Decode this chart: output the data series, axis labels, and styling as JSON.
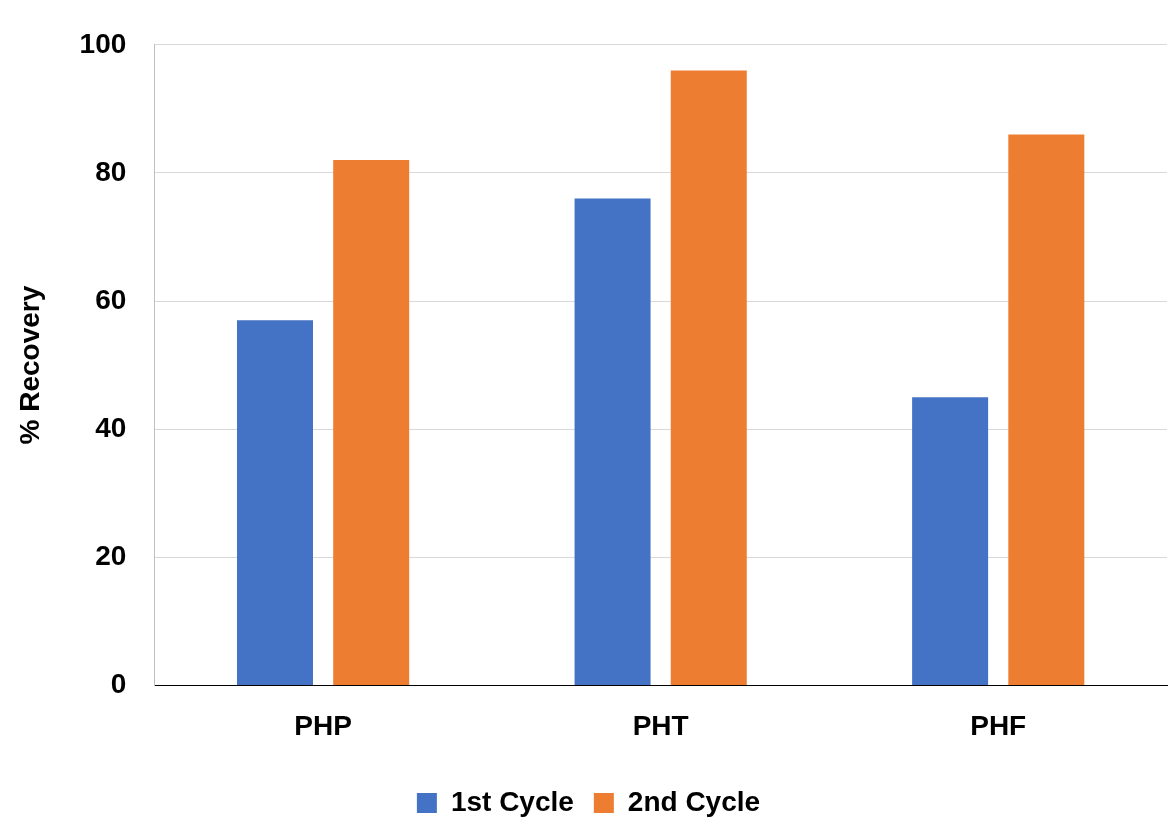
{
  "chart_data": {
    "type": "bar",
    "ylabel": "% Recovery",
    "categories": [
      "PHP",
      "PHT",
      "PHF"
    ],
    "series": [
      {
        "name": "1st Cycle",
        "color": "#4472c4",
        "values": [
          57,
          76,
          45
        ]
      },
      {
        "name": "2nd Cycle",
        "color": "#ed7d31",
        "values": [
          82,
          96,
          86
        ]
      }
    ],
    "ylim": [
      0,
      100
    ],
    "yticks": [
      0,
      20,
      40,
      60,
      80,
      100
    ],
    "grid": "y",
    "legend": "bottom"
  }
}
